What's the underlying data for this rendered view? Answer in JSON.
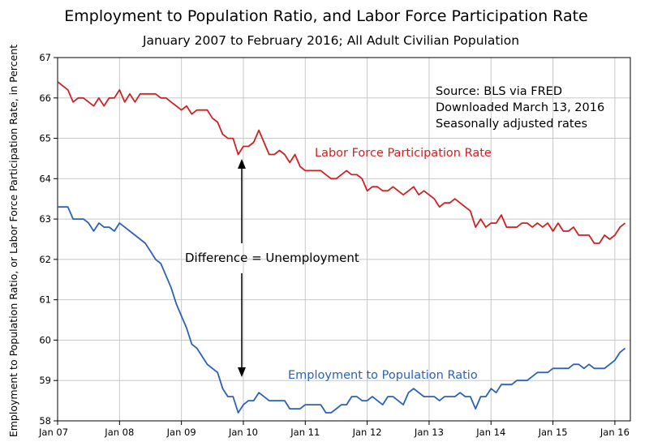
{
  "chart_data": {
    "type": "line",
    "title": "Employment to Population Ratio, and Labor Force Participation Rate",
    "subtitle": "January 2007 to February 2016; All Adult Civilian Population",
    "ylabel": "Employment to Population Ratio, or Labor Force Participation Rate, in Percent",
    "xlabel": "",
    "ylim": [
      58,
      67
    ],
    "yticks": [
      58,
      59,
      60,
      61,
      62,
      63,
      64,
      65,
      66,
      67
    ],
    "xlim": [
      2007.0,
      2016.25
    ],
    "xticks": [
      {
        "value": 2007.0,
        "label": "Jan 07"
      },
      {
        "value": 2008.0,
        "label": "Jan 08"
      },
      {
        "value": 2009.0,
        "label": "Jan 09"
      },
      {
        "value": 2010.0,
        "label": "Jan 10"
      },
      {
        "value": 2011.0,
        "label": "Jan 11"
      },
      {
        "value": 2012.0,
        "label": "Jan 12"
      },
      {
        "value": 2013.0,
        "label": "Jan 13"
      },
      {
        "value": 2014.0,
        "label": "Jan 14"
      },
      {
        "value": 2015.0,
        "label": "Jan 15"
      },
      {
        "value": 2016.0,
        "label": "Jan 16"
      }
    ],
    "grid": true,
    "source_lines": [
      "Source:  BLS via FRED",
      "Downloaded March 13, 2016",
      "Seasonally adjusted rates"
    ],
    "difference_label": "Difference = Unemployment",
    "series": [
      {
        "name": "Labor Force Participation Rate",
        "label": "Labor Force Participation Rate",
        "color": "#cc2222",
        "start": 2007.0,
        "step_months": 1,
        "values": [
          66.4,
          66.3,
          66.2,
          65.9,
          66.0,
          66.0,
          65.9,
          65.8,
          66.0,
          65.8,
          66.0,
          66.0,
          66.2,
          65.9,
          66.1,
          65.9,
          66.1,
          66.1,
          66.1,
          66.1,
          66.0,
          66.0,
          65.9,
          65.8,
          65.7,
          65.8,
          65.6,
          65.7,
          65.7,
          65.7,
          65.5,
          65.4,
          65.1,
          65.0,
          65.0,
          64.6,
          64.8,
          64.8,
          64.9,
          65.2,
          64.9,
          64.6,
          64.6,
          64.7,
          64.6,
          64.4,
          64.6,
          64.3,
          64.2,
          64.2,
          64.2,
          64.2,
          64.1,
          64.0,
          64.0,
          64.1,
          64.2,
          64.1,
          64.1,
          64.0,
          63.7,
          63.8,
          63.8,
          63.7,
          63.7,
          63.8,
          63.7,
          63.6,
          63.7,
          63.8,
          63.6,
          63.7,
          63.6,
          63.5,
          63.3,
          63.4,
          63.4,
          63.5,
          63.4,
          63.3,
          63.2,
          62.8,
          63.0,
          62.8,
          62.9,
          62.9,
          63.1,
          62.8,
          62.8,
          62.8,
          62.9,
          62.9,
          62.8,
          62.9,
          62.8,
          62.9,
          62.7,
          62.9,
          62.7,
          62.7,
          62.8,
          62.6,
          62.6,
          62.6,
          62.4,
          62.4,
          62.6,
          62.5,
          62.6,
          62.8,
          62.9
        ]
      },
      {
        "name": "Employment to Population Ratio",
        "label": "Employment to Population Ratio",
        "color": "#2a62b8",
        "start": 2007.0,
        "step_months": 1,
        "values": [
          63.3,
          63.3,
          63.3,
          63.0,
          63.0,
          63.0,
          62.9,
          62.7,
          62.9,
          62.8,
          62.8,
          62.7,
          62.9,
          62.8,
          62.7,
          62.6,
          62.5,
          62.4,
          62.2,
          62.0,
          61.9,
          61.6,
          61.3,
          60.9,
          60.6,
          60.3,
          59.9,
          59.8,
          59.6,
          59.4,
          59.3,
          59.2,
          58.8,
          58.6,
          58.6,
          58.2,
          58.4,
          58.5,
          58.5,
          58.7,
          58.6,
          58.5,
          58.5,
          58.5,
          58.5,
          58.3,
          58.3,
          58.3,
          58.4,
          58.4,
          58.4,
          58.4,
          58.2,
          58.2,
          58.3,
          58.4,
          58.4,
          58.6,
          58.6,
          58.5,
          58.5,
          58.6,
          58.5,
          58.4,
          58.6,
          58.6,
          58.5,
          58.4,
          58.7,
          58.8,
          58.7,
          58.6,
          58.6,
          58.6,
          58.5,
          58.6,
          58.6,
          58.6,
          58.7,
          58.6,
          58.6,
          58.3,
          58.6,
          58.6,
          58.8,
          58.7,
          58.9,
          58.9,
          58.9,
          59.0,
          59.0,
          59.0,
          59.1,
          59.2,
          59.2,
          59.2,
          59.3,
          59.3,
          59.3,
          59.3,
          59.4,
          59.4,
          59.3,
          59.4,
          59.3,
          59.3,
          59.3,
          59.4,
          59.5,
          59.7,
          59.8
        ]
      }
    ]
  }
}
